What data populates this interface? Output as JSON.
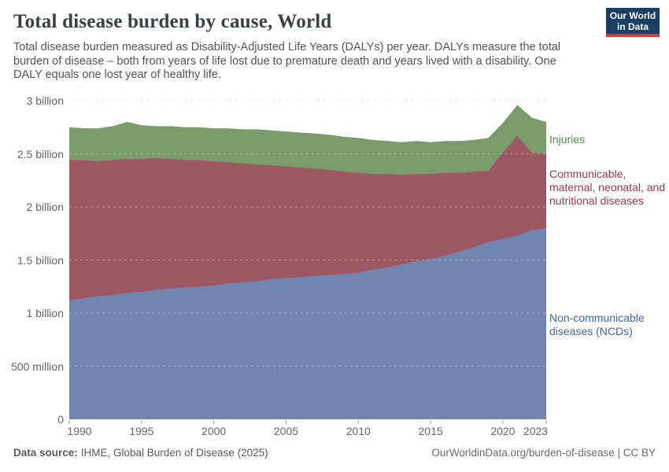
{
  "header": {
    "title": "Total disease burden by cause, World",
    "subtitle": "Total disease burden measured as Disability-Adjusted Life Years (DALYs) per year. DALYs measure the total burden of disease – both from years of life lost due to premature death and years lived with a disability. One DALY equals one lost year of healthy life.",
    "logo": {
      "line1": "Our World",
      "line2": "in Data",
      "bg_color": "#1d3d63",
      "bar_color": "#d73c34"
    }
  },
  "chart_data": {
    "type": "area",
    "stacked": true,
    "title": "Total disease burden by cause, World",
    "xlabel": "",
    "ylabel": "DALYs per year",
    "unit": "billion DALYs",
    "grid": "dashed",
    "legend_position": "right",
    "ylim": [
      0,
      3
    ],
    "x": [
      1990,
      1991,
      1992,
      1993,
      1994,
      1995,
      1996,
      1997,
      1998,
      1999,
      2000,
      2001,
      2002,
      2003,
      2004,
      2005,
      2006,
      2007,
      2008,
      2009,
      2010,
      2011,
      2012,
      2013,
      2014,
      2015,
      2016,
      2017,
      2018,
      2019,
      2020,
      2021,
      2022,
      2023
    ],
    "x_ticks": [
      1990,
      1995,
      2000,
      2005,
      2010,
      2015,
      2020,
      2023
    ],
    "y_ticks": [
      {
        "value": 0,
        "label": "0"
      },
      {
        "value": 0.5,
        "label": "500 million"
      },
      {
        "value": 1,
        "label": "1 billion"
      },
      {
        "value": 1.5,
        "label": "1.5 billion"
      },
      {
        "value": 2,
        "label": "2 billion"
      },
      {
        "value": 2.5,
        "label": "2.5 billion"
      },
      {
        "value": 3,
        "label": "3 billion"
      }
    ],
    "series": [
      {
        "name": "Non-communicable diseases (NCDs)",
        "color": "#7186af",
        "label_color": "#4166aa",
        "values": [
          1.12,
          1.14,
          1.16,
          1.17,
          1.19,
          1.2,
          1.22,
          1.23,
          1.24,
          1.25,
          1.26,
          1.28,
          1.29,
          1.3,
          1.32,
          1.33,
          1.34,
          1.35,
          1.36,
          1.37,
          1.38,
          1.41,
          1.43,
          1.46,
          1.49,
          1.51,
          1.54,
          1.58,
          1.62,
          1.67,
          1.7,
          1.73,
          1.78,
          1.8
        ]
      },
      {
        "name": "Communicable, maternal, neonatal, and nutritional diseases",
        "color": "#9e5863",
        "label_color": "#9b374b",
        "values": [
          1.32,
          1.3,
          1.27,
          1.27,
          1.26,
          1.25,
          1.24,
          1.22,
          1.2,
          1.19,
          1.17,
          1.14,
          1.12,
          1.1,
          1.07,
          1.05,
          1.03,
          1.01,
          0.99,
          0.96,
          0.94,
          0.9,
          0.88,
          0.84,
          0.82,
          0.8,
          0.78,
          0.74,
          0.71,
          0.67,
          0.81,
          0.94,
          0.73,
          0.7
        ]
      },
      {
        "name": "Injuries",
        "color": "#7b9b6c",
        "label_color": "#5b8a52",
        "values": [
          0.31,
          0.3,
          0.31,
          0.32,
          0.35,
          0.32,
          0.3,
          0.31,
          0.31,
          0.31,
          0.31,
          0.32,
          0.32,
          0.33,
          0.33,
          0.33,
          0.33,
          0.33,
          0.33,
          0.33,
          0.33,
          0.32,
          0.31,
          0.31,
          0.31,
          0.3,
          0.3,
          0.3,
          0.3,
          0.31,
          0.28,
          0.29,
          0.33,
          0.3
        ]
      }
    ]
  },
  "footer": {
    "datasource_label": "Data source:",
    "datasource_value": "IHME, Global Burden of Disease (2025)",
    "right": "OurWorldinData.org/burden-of-disease | CC BY"
  }
}
